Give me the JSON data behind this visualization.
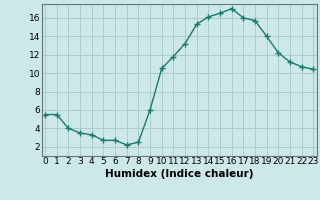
{
  "x": [
    0,
    1,
    2,
    3,
    4,
    5,
    6,
    7,
    8,
    9,
    10,
    11,
    12,
    13,
    14,
    15,
    16,
    17,
    18,
    19,
    20,
    21,
    22,
    23
  ],
  "y": [
    5.5,
    5.5,
    4.0,
    3.5,
    3.3,
    2.7,
    2.7,
    2.2,
    2.5,
    6.0,
    10.5,
    11.8,
    13.2,
    15.3,
    16.1,
    16.5,
    17.0,
    16.0,
    15.7,
    14.0,
    12.2,
    11.2,
    10.7,
    10.4
  ],
  "line_color": "#1a7a6e",
  "marker": "+",
  "marker_size": 4,
  "line_width": 1.0,
  "bg_color": "#cce8e8",
  "grid_color": "#aacccc",
  "xlabel": "Humidex (Indice chaleur)",
  "xlabel_fontsize": 7.5,
  "tick_fontsize": 6.5,
  "ylim": [
    1.0,
    17.5
  ],
  "yticks": [
    2,
    4,
    6,
    8,
    10,
    12,
    14,
    16
  ],
  "xticks": [
    0,
    1,
    2,
    3,
    4,
    5,
    6,
    7,
    8,
    9,
    10,
    11,
    12,
    13,
    14,
    15,
    16,
    17,
    18,
    19,
    20,
    21,
    22,
    23
  ],
  "xlim": [
    -0.3,
    23.3
  ]
}
